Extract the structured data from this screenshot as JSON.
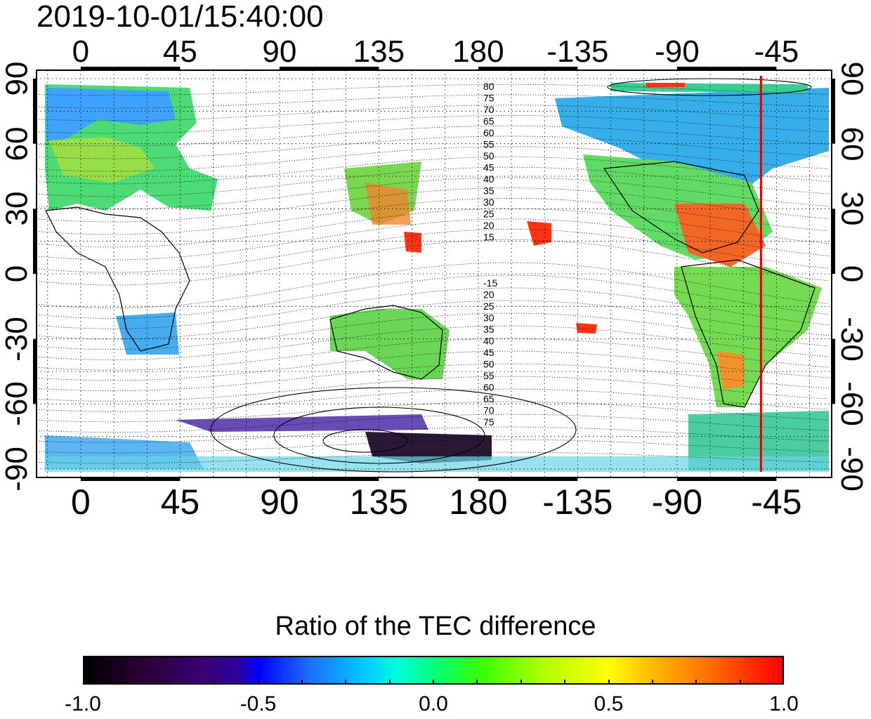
{
  "title": "2019-10-01/15:40:00",
  "axes": {
    "top_ticks": [
      "0",
      "45",
      "90",
      "135",
      "180",
      "-135",
      "-90",
      "-45"
    ],
    "bottom_ticks": [
      "0",
      "45",
      "90",
      "135",
      "180",
      "-135",
      "-90",
      "-45"
    ],
    "left_ticks": [
      "90",
      "60",
      "30",
      "0",
      "-30",
      "-60",
      "-90"
    ],
    "right_ticks": [
      "90",
      "60",
      "30",
      "0",
      "-30",
      "-60",
      "-90"
    ]
  },
  "map": {
    "longitude_range": [
      -20,
      340
    ],
    "latitude_range": [
      -90,
      90
    ],
    "gridlines": "dotted",
    "marker_longitude": -52,
    "marker_color": "#e00000",
    "contour_labels_north": [
      "80",
      "75",
      "70",
      "65",
      "60",
      "55",
      "50",
      "45",
      "40",
      "35",
      "30",
      "25",
      "20",
      "15"
    ],
    "contour_labels_south": [
      "-15",
      "20",
      "25",
      "30",
      "35",
      "40",
      "45",
      "50",
      "55",
      "60",
      "65",
      "70",
      "75"
    ]
  },
  "colorbar": {
    "title": "Ratio of the TEC difference",
    "tick_labels": [
      "-1.0",
      "-0.5",
      "0.0",
      "0.5",
      "1.0"
    ],
    "range": [
      -1.0,
      1.0
    ],
    "colors": [
      "#000000",
      "#3a0073",
      "#0000ff",
      "#00c8ff",
      "#00ff7a",
      "#b4ff00",
      "#ffff00",
      "#ff6a00",
      "#ff0000"
    ]
  }
}
